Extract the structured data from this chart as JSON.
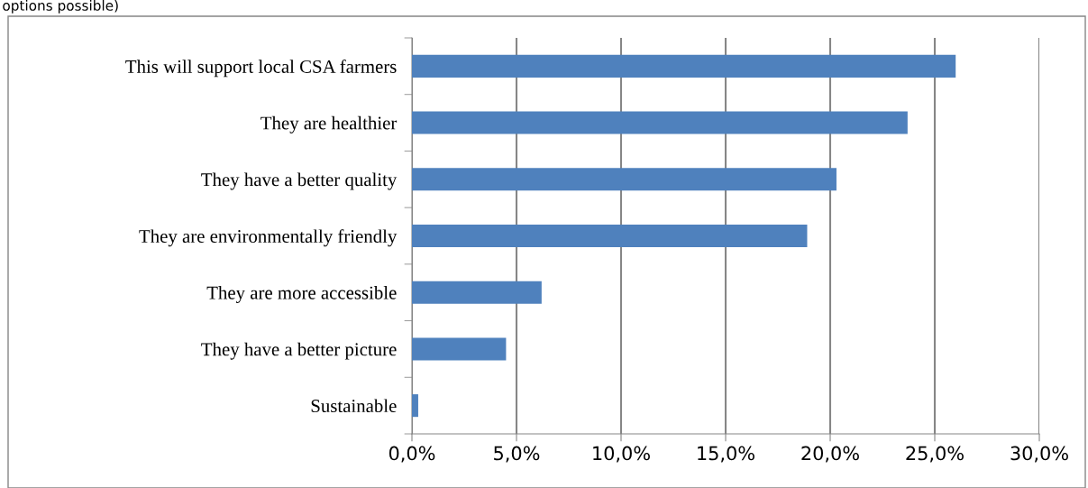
{
  "chart_data": {
    "type": "bar",
    "orientation": "horizontal",
    "title": "options possible)",
    "categories": [
      "This will support local CSA farmers",
      "They are healthier",
      "They have a better quality",
      "They are environmentally friendly",
      "They are more accessible",
      "They have a better picture",
      "Sustainable"
    ],
    "values": [
      26.0,
      23.7,
      20.3,
      18.9,
      6.2,
      4.5,
      0.3
    ],
    "color": "#4f81bd",
    "xlim": [
      0,
      30
    ],
    "xticks": [
      {
        "value": 0,
        "label": "0,0%"
      },
      {
        "value": 5,
        "label": "5,0%"
      },
      {
        "value": 10,
        "label": "10,0%"
      },
      {
        "value": 15,
        "label": "15,0%"
      },
      {
        "value": 20,
        "label": "20,0%"
      },
      {
        "value": 25,
        "label": "25,0%"
      },
      {
        "value": 30,
        "label": "30,0%"
      }
    ],
    "grid": "x",
    "legend": false
  }
}
